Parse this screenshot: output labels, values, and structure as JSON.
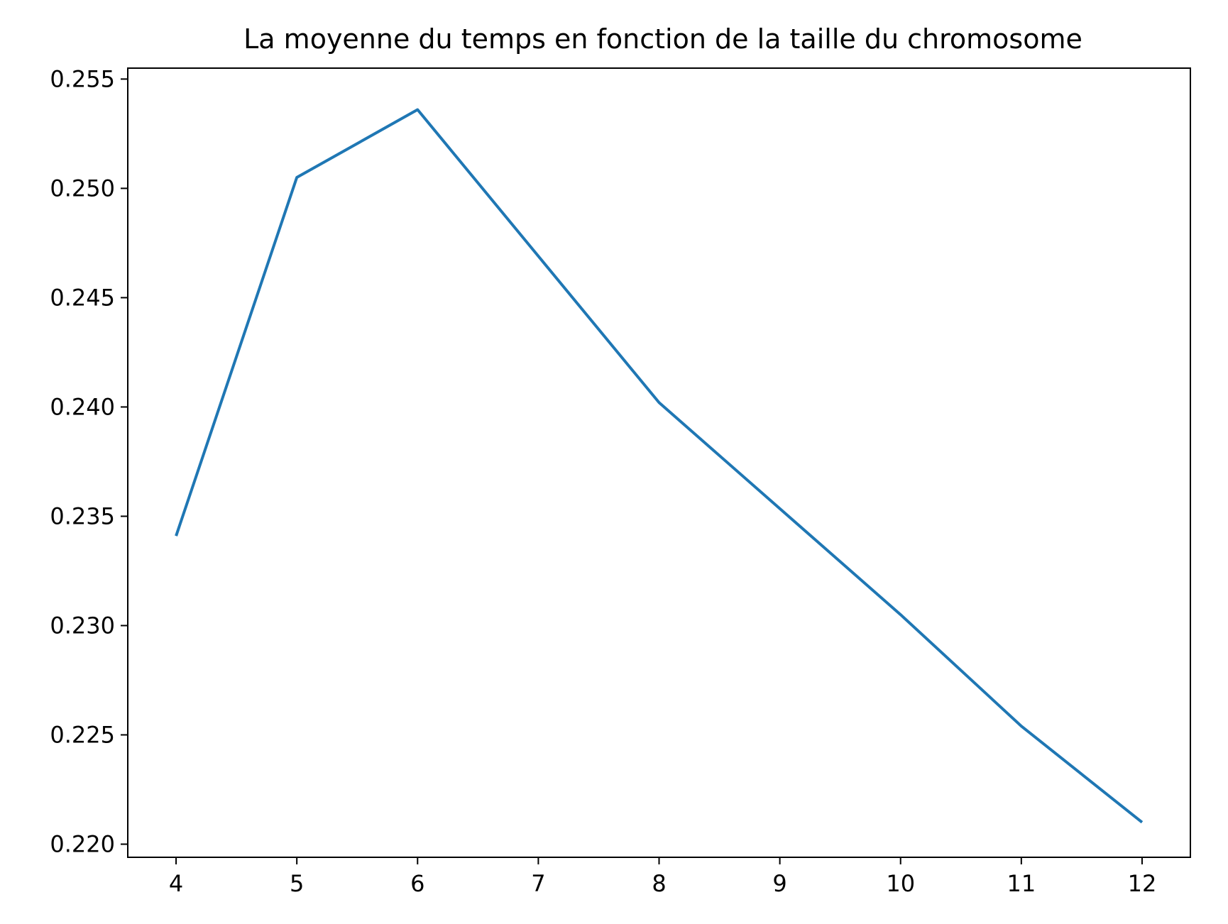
{
  "chart_data": {
    "type": "line",
    "title": "La moyenne du temps en fonction de la taille du chromosome",
    "xlabel": "",
    "ylabel": "",
    "x": [
      4,
      5,
      6,
      8,
      10,
      11,
      12
    ],
    "series": [
      {
        "values": [
          0.2341,
          0.2505,
          0.2536,
          0.2402,
          0.2305,
          0.2254,
          0.221
        ],
        "color": "#1f77b4"
      }
    ],
    "xlim": [
      3.6,
      12.4
    ],
    "ylim": [
      0.2194,
      0.2555
    ],
    "x_ticks": [
      "4",
      "5",
      "6",
      "7",
      "8",
      "9",
      "10",
      "11",
      "12"
    ],
    "y_ticks": [
      "0.220",
      "0.225",
      "0.230",
      "0.235",
      "0.240",
      "0.245",
      "0.250",
      "0.255"
    ],
    "grid": false,
    "legend": "none"
  }
}
